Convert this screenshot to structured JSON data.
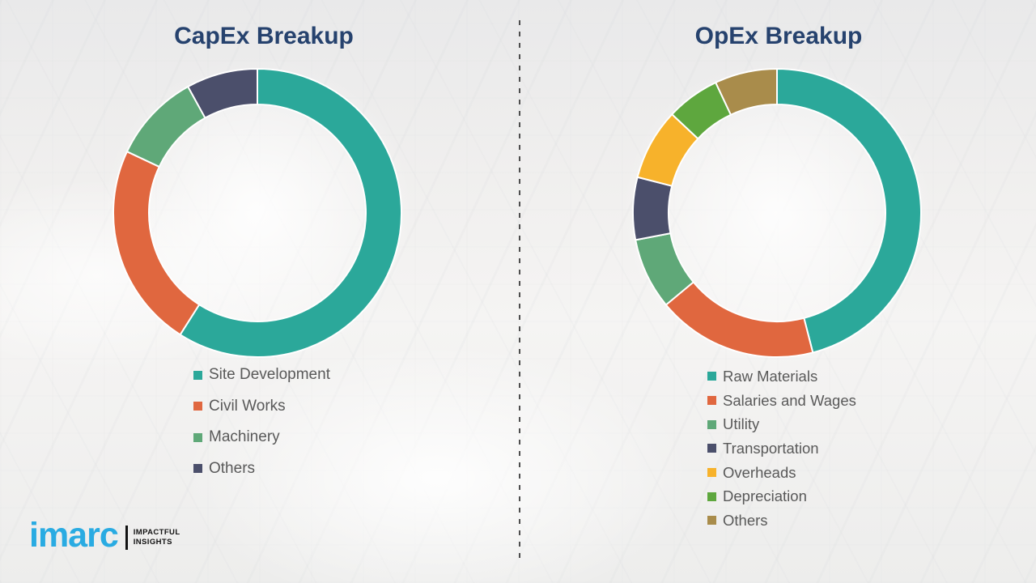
{
  "theme": {
    "title_color": "#26426E",
    "legend_text_color": "#595959",
    "segment_gap_color": "#FFFFFF",
    "divider_color": "#4D4D4D"
  },
  "branding": {
    "logo_text": "imarc",
    "tagline_line1": "IMPACTFUL",
    "tagline_line2": "INSIGHTS",
    "logo_color": "#29ABE2",
    "tagline_color": "#121212"
  },
  "chart_data": [
    {
      "type": "pie",
      "donut": true,
      "title": "CapEx Breakup",
      "categories": [
        "Site Development",
        "Civil Works",
        "Machinery",
        "Others"
      ],
      "values": [
        59,
        23,
        10,
        8
      ],
      "colors": [
        "#2BA89A",
        "#E0673F",
        "#5FA878",
        "#4B4F6B"
      ],
      "start_angle_deg": 0,
      "direction": "clockwise",
      "hole_ratio": 0.75,
      "legend_position": "bottom"
    },
    {
      "type": "pie",
      "donut": true,
      "title": "OpEx Breakup",
      "categories": [
        "Raw Materials",
        "Salaries and Wages",
        "Utility",
        "Transportation",
        "Overheads",
        "Depreciation",
        "Others"
      ],
      "values": [
        46,
        18,
        8,
        7,
        8,
        6,
        7
      ],
      "colors": [
        "#2BA89A",
        "#E0673F",
        "#5FA878",
        "#4B4F6B",
        "#F7B22B",
        "#5EA73E",
        "#A98C4B"
      ],
      "start_angle_deg": 0,
      "direction": "clockwise",
      "hole_ratio": 0.75,
      "legend_position": "bottom"
    }
  ]
}
